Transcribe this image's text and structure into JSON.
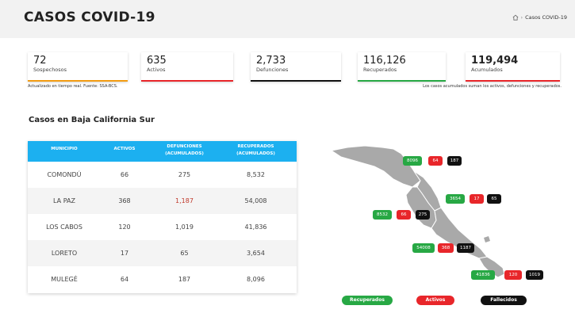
{
  "header": {
    "title": "CASOS COVID-19",
    "breadcrumb_current": "Casos COVID-19"
  },
  "stats": [
    {
      "value": "72",
      "label": "Sospechosos",
      "accent": "#f39c12"
    },
    {
      "value": "635",
      "label": "Activos",
      "accent": "#e8262a"
    },
    {
      "value": "2,733",
      "label": "Defunciones",
      "accent": "#111111"
    },
    {
      "value": "116,126",
      "label": "Recuperados",
      "accent": "#27a844"
    },
    {
      "value": "119,494",
      "label": "Acumulados",
      "accent": "#e8262a"
    }
  ],
  "notes": {
    "left": "Actualizado en tiempo real. Fuente: SSA-BCS.",
    "right": "Los casos acumulados suman los activos, defunciones y recuperados."
  },
  "section_title": "Casos en Baja California Sur",
  "table": {
    "headers": [
      "MUNICIPIO",
      "ACTIVOS",
      "DEFUNCIONES\n(ACUMULADOS)",
      "RECUPERADOS\n(ACUMULADOS)"
    ],
    "rows": [
      {
        "municipio": "COMONDÚ",
        "activos": "66",
        "defunciones": "275",
        "recuperados": "8,532"
      },
      {
        "municipio": "LA PAZ",
        "activos": "368",
        "defunciones": "1,187",
        "recuperados": "54,008"
      },
      {
        "municipio": "LOS CABOS",
        "activos": "120",
        "defunciones": "1,019",
        "recuperados": "41,836"
      },
      {
        "municipio": "LORETO",
        "activos": "17",
        "defunciones": "65",
        "recuperados": "3,654"
      },
      {
        "municipio": "MULEGÉ",
        "activos": "64",
        "defunciones": "187",
        "recuperados": "8,096"
      }
    ]
  },
  "map_labels": {
    "mulege": {
      "recuperados": "8096",
      "activos": "64",
      "fallecidos": "187"
    },
    "loreto": {
      "recuperados": "3654",
      "activos": "17",
      "fallecidos": "65"
    },
    "comondu": {
      "recuperados": "8532",
      "activos": "66",
      "fallecidos": "275"
    },
    "lapaz": {
      "recuperados": "54008",
      "activos": "368",
      "fallecidos": "1187"
    },
    "loscabos": {
      "recuperados": "41836",
      "activos": "120",
      "fallecidos": "1019"
    }
  },
  "legend": {
    "recuperados": "Recuperados",
    "activos": "Activos",
    "fallecidos": "Fallecidos"
  },
  "colors": {
    "table_header": "#1cb0f0",
    "green": "#27a844",
    "red": "#e8262a",
    "black": "#111111",
    "map_gray": "#a9a9a9"
  }
}
